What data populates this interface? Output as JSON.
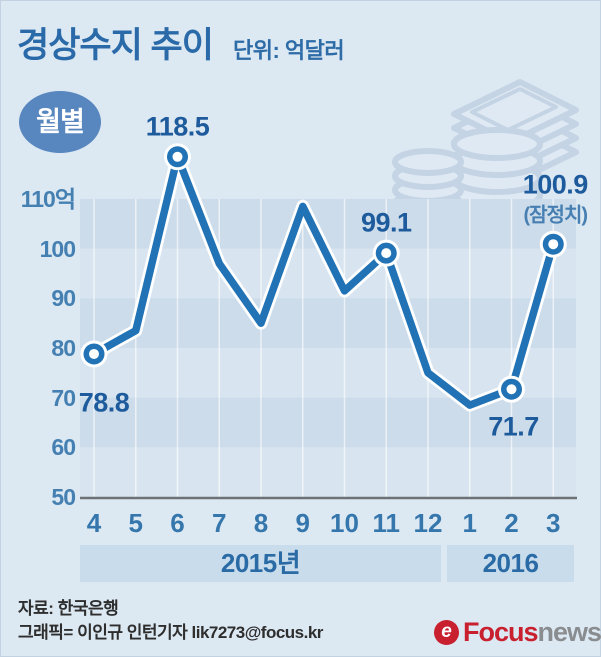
{
  "header": {
    "title": "경상수지 추이",
    "unit": "단위: 억달러",
    "badge": "월별"
  },
  "chart_data": {
    "type": "line",
    "title": "경상수지 추이",
    "unit_label": "단위: 억달러",
    "x": [
      "4",
      "5",
      "6",
      "7",
      "8",
      "9",
      "10",
      "11",
      "12",
      "1",
      "2",
      "3"
    ],
    "series": [
      {
        "name": "경상수지",
        "values": [
          78.8,
          83.5,
          118.5,
          97,
          85,
          108.5,
          91.5,
          99.1,
          75,
          68.5,
          71.7,
          100.9
        ]
      }
    ],
    "labeled_points": [
      {
        "index": 0,
        "text": "78.8",
        "ox": 10,
        "oy": 49
      },
      {
        "index": 2,
        "text": "118.5",
        "ox": 0,
        "oy": -30
      },
      {
        "index": 7,
        "text": "99.1",
        "ox": 0,
        "oy": -30
      },
      {
        "index": 10,
        "text": "71.7",
        "ox": 2,
        "oy": 38
      },
      {
        "index": 11,
        "text": "100.9",
        "ox": 2,
        "oy": -59,
        "sublabel": "(잠정치)",
        "sub_oy": -31
      }
    ],
    "ylim": [
      50,
      110
    ],
    "yticks": [
      "110억",
      "100",
      "90",
      "80",
      "70",
      "60",
      "50"
    ],
    "x_groups": [
      {
        "label": "2015년",
        "months": [
          "4",
          "5",
          "6",
          "7",
          "8",
          "9",
          "10",
          "11",
          "12"
        ]
      },
      {
        "label": "2016",
        "months": [
          "1",
          "2",
          "3"
        ]
      }
    ],
    "grid": "alternating horizontal bands, white vertical gridlines per month",
    "legend_position": "none"
  },
  "colors": {
    "background": "#dce8f2",
    "line": "#2173b6",
    "line_casing": "#ffffff",
    "band_dark": "#ccdcea",
    "band_light": "#d8e5f0",
    "axis_line": "#6e7277",
    "tick_text": "#4580b2",
    "data_label": "#1e5b9c",
    "badge_fill": "#5886bf",
    "year_band_fill": "#c9dcec",
    "logo_red": "#c8202f",
    "logo_gray": "#8a8d90"
  },
  "footer": {
    "source": "자료: 한국은행",
    "credit": "그래픽= 이인규 인턴기자 lik7273@focus.kr",
    "logo_brand": "Focus",
    "logo_suffix": "news",
    "logo_icon_letter": "e"
  }
}
